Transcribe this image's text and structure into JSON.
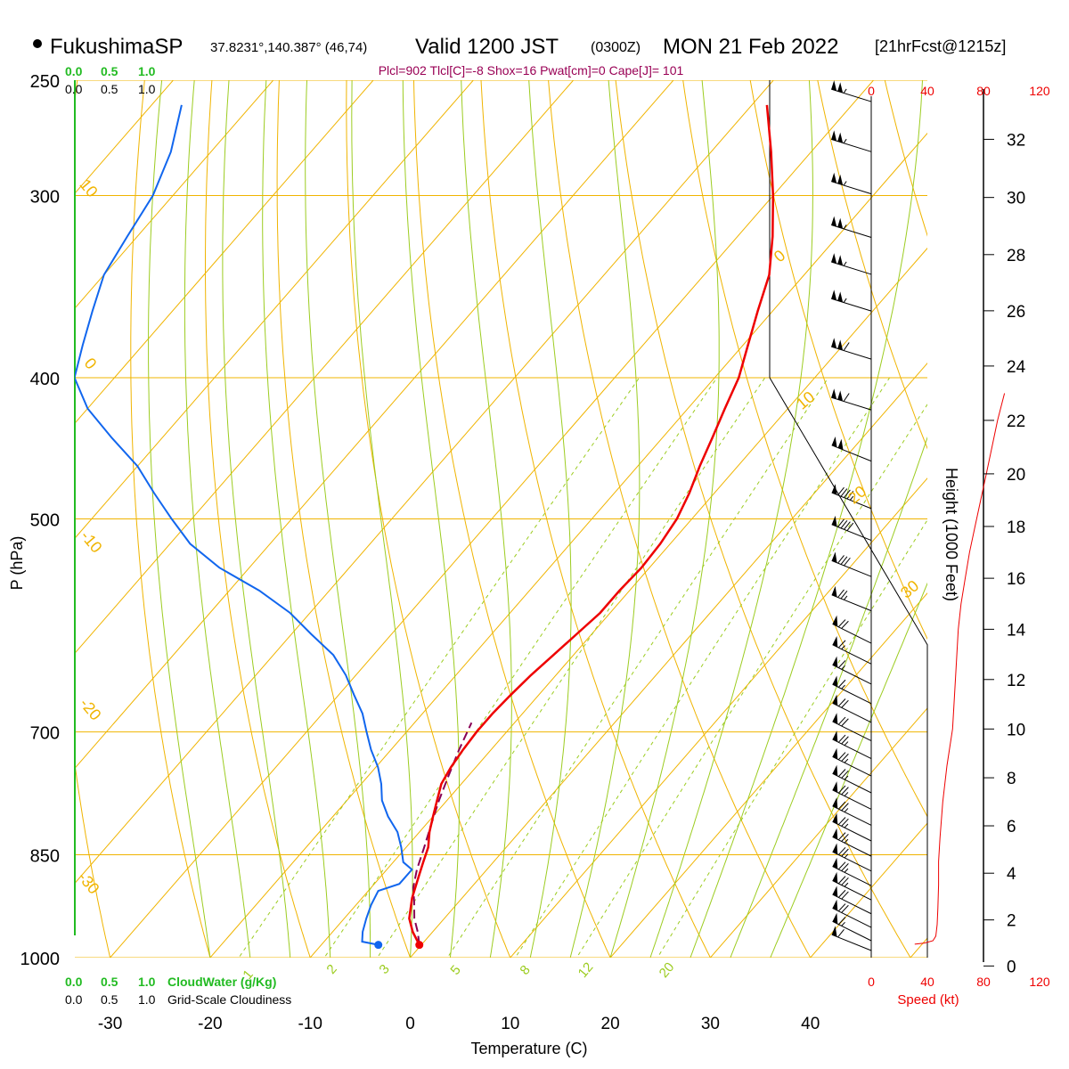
{
  "header": {
    "station": "FukushimaSP",
    "coords": "37.8231°,140.387° (46,74)",
    "valid": "Valid 1200 JST",
    "utc": "(0300Z)",
    "date": "MON 21 Feb 2022",
    "forecast": "[21hrFcst@1215z]",
    "indices": "Plcl=902 Tlcl[C]=-8 Shox=16 Pwat[cm]=0 Cape[J]= 101"
  },
  "colors": {
    "temperature": "#ee0000",
    "dewpoint": "#1166ee",
    "parcel": "#880055",
    "isobar": "#f0b400",
    "dry_adiabat": "#f0b400",
    "moist_adiabat": "#9ccc20",
    "mixing_ratio": "#9ccc20",
    "cloud_water": "#22bb22",
    "speed": "#ee0000",
    "indices_text": "#990055"
  },
  "chart_data": {
    "type": "line",
    "subtype": "skew-T log-P",
    "xlabel": "Temperature (C)",
    "ylabel": "P (hPa)",
    "right_label": "Height (1000 Feet)",
    "x_ticks": [
      "-30",
      "-20",
      "-10",
      "0",
      "10",
      "20",
      "30",
      "40"
    ],
    "pressure_ticks": [
      "250",
      "300",
      "400",
      "500",
      "700",
      "850",
      "1000"
    ],
    "height_ticks": [
      "0",
      "2",
      "4",
      "6",
      "8",
      "10",
      "12",
      "14",
      "16",
      "18",
      "20",
      "22",
      "24",
      "26",
      "28",
      "30",
      "32"
    ],
    "dry_adiabat_labels": [
      "10",
      "0",
      "-10",
      "-20",
      "-30",
      "0",
      "10",
      "20",
      "30"
    ],
    "mixing_ratio_labels": [
      "1",
      "2",
      "3",
      "5",
      "8",
      "12",
      "20"
    ],
    "cloud_scale_top_green": [
      "0.0",
      "0.5",
      "1.0"
    ],
    "cloud_scale_top_black": [
      "0.0",
      "0.5",
      "1.0"
    ],
    "cloud_scale_bottom_green": [
      "0.0",
      "0.5",
      "1.0"
    ],
    "cloud_scale_bottom_black": [
      "0.0",
      "0.5",
      "1.0"
    ],
    "cloud_water_label": "CloudWater (g/Kg)",
    "cloudiness_label": "Grid-Scale Cloudiness",
    "speed_ticks": [
      "0",
      "40",
      "80",
      "120"
    ],
    "speed_label": "Speed (kt)",
    "series": [
      {
        "name": "Temperature",
        "points": [
          [
            -0.2,
            980
          ],
          [
            -2,
            960
          ],
          [
            -3.5,
            940
          ],
          [
            -5,
            910
          ],
          [
            -6.2,
            880
          ],
          [
            -7,
            860
          ],
          [
            -7.8,
            840
          ],
          [
            -9,
            820
          ],
          [
            -10,
            800
          ],
          [
            -11,
            780
          ],
          [
            -12,
            760
          ],
          [
            -12.5,
            740
          ],
          [
            -12.8,
            720
          ],
          [
            -13,
            700
          ],
          [
            -13,
            680
          ],
          [
            -12.8,
            660
          ],
          [
            -12.5,
            640
          ],
          [
            -12,
            620
          ],
          [
            -11.5,
            600
          ],
          [
            -11,
            580
          ],
          [
            -11,
            560
          ],
          [
            -10.8,
            540
          ],
          [
            -11,
            520
          ],
          [
            -11.5,
            500
          ],
          [
            -12.5,
            480
          ],
          [
            -13.8,
            460
          ],
          [
            -15,
            440
          ],
          [
            -16.3,
            420
          ],
          [
            -17.6,
            400
          ],
          [
            -19.5,
            380
          ],
          [
            -21.5,
            360
          ],
          [
            -23.5,
            340
          ],
          [
            -26.5,
            320
          ],
          [
            -30,
            300
          ],
          [
            -34,
            280
          ],
          [
            -38.5,
            260
          ]
        ]
      },
      {
        "name": "Dewpoint",
        "points": [
          [
            -4.3,
            980
          ],
          [
            -6.2,
            975
          ],
          [
            -7,
            960
          ],
          [
            -7.8,
            940
          ],
          [
            -8.5,
            920
          ],
          [
            -9,
            900
          ],
          [
            -7.5,
            890
          ],
          [
            -7.5,
            870
          ],
          [
            -9,
            860
          ],
          [
            -10.5,
            840
          ],
          [
            -12.2,
            820
          ],
          [
            -14.5,
            800
          ],
          [
            -16.5,
            780
          ],
          [
            -18,
            760
          ],
          [
            -19.8,
            740
          ],
          [
            -22,
            720
          ],
          [
            -24,
            700
          ],
          [
            -26,
            680
          ],
          [
            -28.5,
            660
          ],
          [
            -31,
            640
          ],
          [
            -34,
            620
          ],
          [
            -38,
            600
          ],
          [
            -42,
            580
          ],
          [
            -47,
            560
          ],
          [
            -53,
            540
          ],
          [
            -58,
            520
          ],
          [
            -62,
            500
          ],
          [
            -66,
            480
          ],
          [
            -70,
            460
          ],
          [
            -75,
            440
          ],
          [
            -80,
            420
          ],
          [
            -84,
            400
          ],
          [
            -86,
            380
          ],
          [
            -88,
            360
          ],
          [
            -90,
            340
          ],
          [
            -91,
            320
          ],
          [
            -92,
            300
          ],
          [
            -94,
            280
          ],
          [
            -97,
            260
          ]
        ]
      },
      {
        "name": "Parcel",
        "points": [
          [
            -0.2,
            980
          ],
          [
            -1.5,
            960
          ],
          [
            -3,
            940
          ],
          [
            -4.5,
            915
          ],
          [
            -5.8,
            895
          ],
          [
            -7,
            870
          ],
          [
            -8.2,
            840
          ],
          [
            -9.5,
            810
          ],
          [
            -10.8,
            780
          ],
          [
            -12,
            750
          ],
          [
            -13.2,
            720
          ],
          [
            -14.3,
            690
          ]
        ]
      }
    ],
    "wind_barbs": [
      {
        "p": 975,
        "dir": 280,
        "speed": 60
      },
      {
        "p": 960,
        "dir": 285,
        "speed": 65
      },
      {
        "p": 940,
        "dir": 285,
        "speed": 70
      },
      {
        "p": 920,
        "dir": 285,
        "speed": 70
      },
      {
        "p": 900,
        "dir": 285,
        "speed": 75
      },
      {
        "p": 880,
        "dir": 285,
        "speed": 75
      },
      {
        "p": 860,
        "dir": 285,
        "speed": 75
      },
      {
        "p": 840,
        "dir": 285,
        "speed": 75
      },
      {
        "p": 820,
        "dir": 285,
        "speed": 75
      },
      {
        "p": 800,
        "dir": 285,
        "speed": 75
      },
      {
        "p": 780,
        "dir": 285,
        "speed": 75
      },
      {
        "p": 760,
        "dir": 285,
        "speed": 75
      },
      {
        "p": 740,
        "dir": 285,
        "speed": 75
      },
      {
        "p": 720,
        "dir": 285,
        "speed": 75
      },
      {
        "p": 700,
        "dir": 285,
        "speed": 70
      },
      {
        "p": 680,
        "dir": 285,
        "speed": 70
      },
      {
        "p": 660,
        "dir": 285,
        "speed": 65
      },
      {
        "p": 640,
        "dir": 285,
        "speed": 65
      },
      {
        "p": 620,
        "dir": 285,
        "speed": 65
      },
      {
        "p": 600,
        "dir": 285,
        "speed": 70
      },
      {
        "p": 570,
        "dir": 280,
        "speed": 75
      },
      {
        "p": 540,
        "dir": 280,
        "speed": 80
      },
      {
        "p": 510,
        "dir": 280,
        "speed": 90
      },
      {
        "p": 485,
        "dir": 280,
        "speed": 95
      },
      {
        "p": 450,
        "dir": 280,
        "speed": 100
      },
      {
        "p": 415,
        "dir": 275,
        "speed": 110
      },
      {
        "p": 383,
        "dir": 275,
        "speed": 110
      },
      {
        "p": 355,
        "dir": 275,
        "speed": 105
      },
      {
        "p": 335,
        "dir": 275,
        "speed": 105
      },
      {
        "p": 316,
        "dir": 275,
        "speed": 105
      },
      {
        "p": 295,
        "dir": 275,
        "speed": 105
      },
      {
        "p": 276,
        "dir": 275,
        "speed": 105
      },
      {
        "p": 255,
        "dir": 275,
        "speed": 105
      }
    ],
    "speed_profile": [
      [
        31,
        0.95
      ],
      [
        38,
        1.0
      ],
      [
        44,
        1.1
      ],
      [
        46,
        1.3
      ],
      [
        47,
        1.8
      ],
      [
        47.5,
        2.5
      ],
      [
        48,
        3.5
      ],
      [
        48,
        4.5
      ],
      [
        49,
        5.5
      ],
      [
        51,
        7
      ],
      [
        54,
        8.5
      ],
      [
        58,
        10
      ],
      [
        59,
        11
      ],
      [
        60,
        12
      ],
      [
        61,
        13
      ],
      [
        62,
        14
      ],
      [
        64,
        15
      ],
      [
        67,
        16
      ],
      [
        70,
        17
      ],
      [
        74,
        18
      ],
      [
        78,
        19
      ],
      [
        82,
        20
      ],
      [
        86,
        21
      ],
      [
        90,
        22
      ],
      [
        95,
        23
      ]
    ],
    "cloud_water_profile": [
      [
        0,
        0
      ],
      [
        0,
        32
      ]
    ]
  }
}
